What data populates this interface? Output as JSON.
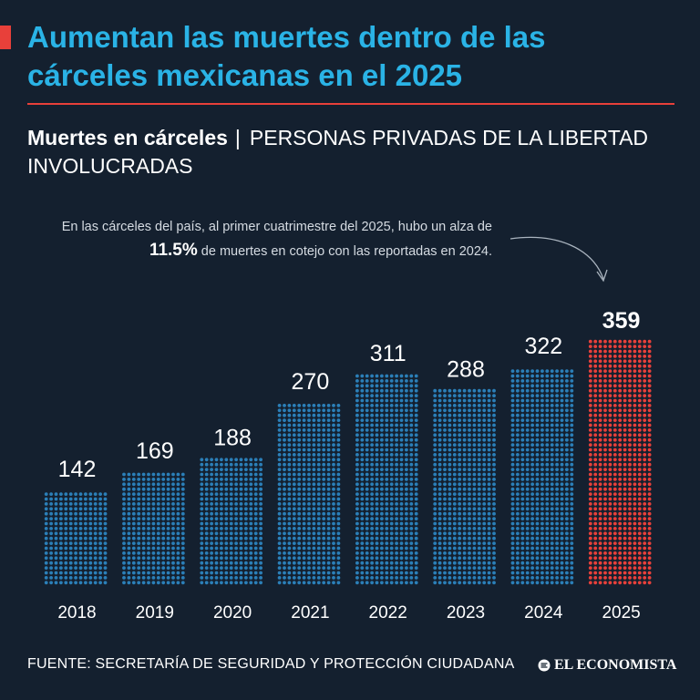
{
  "header": {
    "title": "Aumentan las muertes dentro de las cárceles mexicanas en el 2025",
    "subtitle_strong": "Muertes en cárceles",
    "subtitle_separator": "|",
    "subtitle_light": "PERSONAS PRIVADAS DE LA LIBERTAD INVOLUCRADAS"
  },
  "annotation": {
    "before": "En las cárceles del país, al primer cuatrimestre del 2025, hubo un alza de ",
    "highlight": "11.5%",
    "after": " de muertes en cotejo con las reportadas en 2024."
  },
  "chart_data": {
    "type": "bar",
    "categories": [
      "2018",
      "2019",
      "2020",
      "2021",
      "2022",
      "2023",
      "2024",
      "2025"
    ],
    "values": [
      142,
      169,
      188,
      270,
      311,
      288,
      322,
      359
    ],
    "highlight_category": "2025",
    "colors": {
      "default": "#2b7fb8",
      "highlight": "#e8403a"
    },
    "title": "Muertes en cárceles",
    "xlabel": "",
    "ylabel": "",
    "ylim": [
      0,
      359
    ],
    "grid": false
  },
  "footer": {
    "source": "FUENTE: SECRETARÍA DE SEGURIDAD Y PROTECCIÓN CIUDADANA",
    "brand": "EL ECONOMISTA"
  },
  "colors": {
    "background": "#14202f",
    "title": "#2ab3e6",
    "accent": "#e8403a"
  }
}
